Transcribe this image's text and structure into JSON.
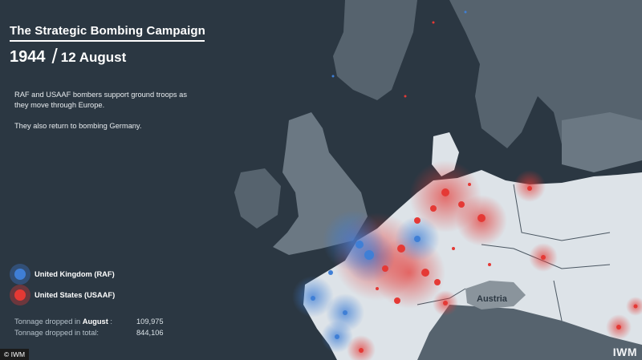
{
  "title": "The Strategic Bombing Campaign",
  "year": "1944",
  "date": "12 August",
  "description": [
    "RAF and USAAF bombers support ground troops as they move through Europe.",
    "They also return to bombing Germany."
  ],
  "legend": [
    {
      "label": "United Kingdom (RAF)",
      "color": "#3f7fd6"
    },
    {
      "label": "United States (USAAF)",
      "color": "#e53935"
    }
  ],
  "stats": {
    "august_label_prefix": "Tonnage dropped in ",
    "august_label_bold": "August",
    "august_label_suffix": " :",
    "august_value": "109,975",
    "total_label": "Tonnage dropped in total:",
    "total_value": "844,106"
  },
  "map_labels": {
    "austria": "Austria"
  },
  "credit": "© IWM",
  "watermark": "IWM",
  "colors": {
    "sea": "#2b3742",
    "land_dark": "#56636e",
    "land_light": "#dde3e8",
    "raf": "#3f7fd6",
    "usaaf": "#e53935"
  }
}
